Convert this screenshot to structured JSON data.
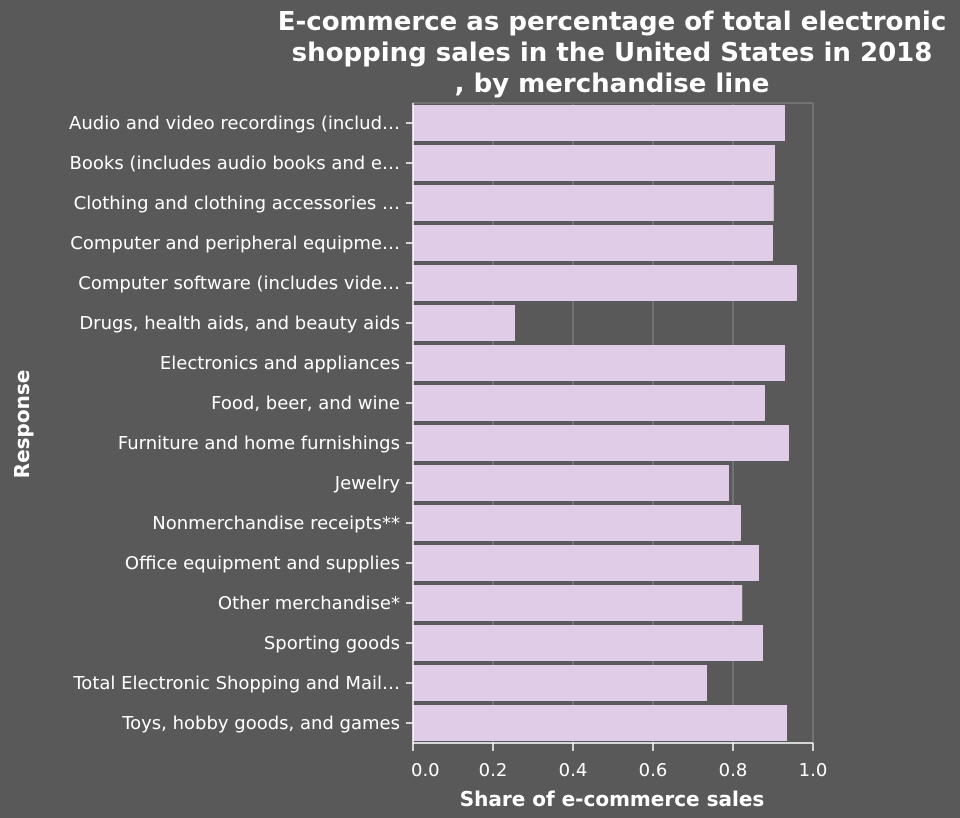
{
  "chart_data": {
    "type": "bar",
    "orientation": "horizontal",
    "title": "E-commerce as percentage of total electronic shopping sales in the United States in 2018 , by merchandise line",
    "title_lines": [
      "E-commerce as percentage of total electronic",
      "shopping sales in the United States in 2018",
      ", by merchandise line"
    ],
    "xlabel": "Share of e-commerce sales",
    "ylabel": "Response",
    "xlim": [
      0,
      1.0
    ],
    "xticks": [
      "0.0",
      "0.2",
      "0.4",
      "0.6",
      "0.8",
      "1.0"
    ],
    "xtick_values": [
      0,
      0.2,
      0.4,
      0.6,
      0.8,
      1.0
    ],
    "grid": "vertical",
    "categories": [
      "Audio and video recordings (includ…",
      "Books (includes audio books and e…",
      "Clothing and clothing accessories …",
      "Computer and peripheral equipme…",
      "Computer software (includes vide…",
      "Drugs, health aids, and beauty aids",
      "Electronics and appliances",
      "Food, beer, and wine",
      "Furniture and home furnishings",
      "Jewelry",
      "Nonmerchandise receipts**",
      "Office equipment and supplies",
      "Other merchandise*",
      "Sporting goods",
      "Total Electronic Shopping and Mail…",
      "Toys, hobby goods, and games"
    ],
    "values": [
      0.93,
      0.905,
      0.902,
      0.9,
      0.96,
      0.255,
      0.93,
      0.88,
      0.94,
      0.79,
      0.82,
      0.865,
      0.823,
      0.875,
      0.735,
      0.935
    ],
    "colors": {
      "background": "#595959",
      "bar": "#e0cce6",
      "grid": "#7a7a7a",
      "axis": "#ffffff",
      "text": "#ffffff"
    }
  }
}
